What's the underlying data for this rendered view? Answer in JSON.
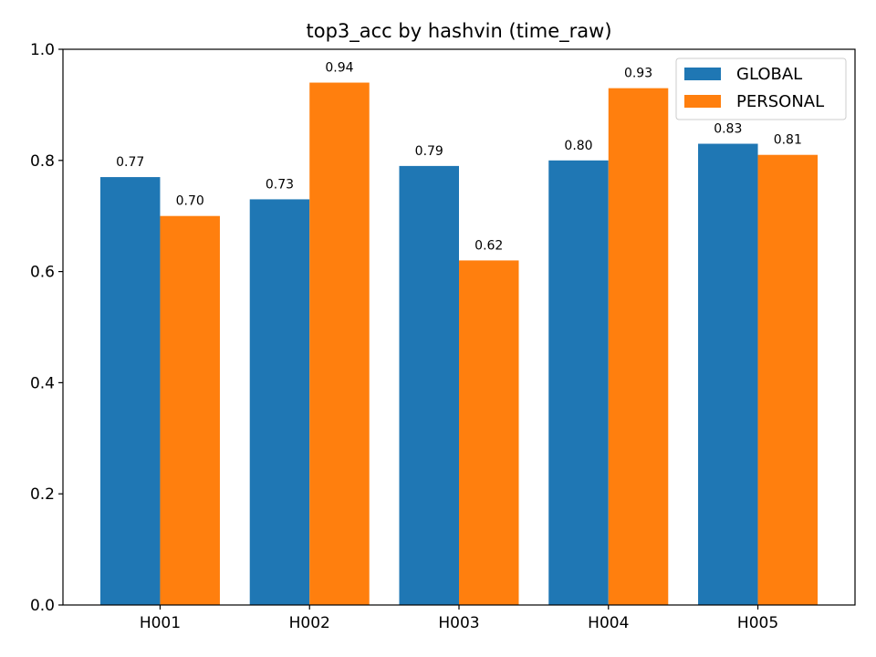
{
  "chart_data": {
    "type": "bar",
    "title": "top3_acc by hashvin (time_raw)",
    "xlabel": "",
    "ylabel": "",
    "categories": [
      "H001",
      "H002",
      "H003",
      "H004",
      "H005"
    ],
    "series": [
      {
        "name": "GLOBAL",
        "color": "#1f77b4",
        "values": [
          0.77,
          0.73,
          0.79,
          0.8,
          0.83
        ],
        "labels": [
          "0.77",
          "0.73",
          "0.79",
          "0.80",
          "0.83"
        ]
      },
      {
        "name": "PERSONAL",
        "color": "#ff7f0e",
        "values": [
          0.7,
          0.94,
          0.62,
          0.93,
          0.81
        ],
        "labels": [
          "0.70",
          "0.94",
          "0.62",
          "0.93",
          "0.81"
        ]
      }
    ],
    "ylim": [
      0,
      1.0
    ],
    "yticks": [
      0.0,
      0.2,
      0.4,
      0.6,
      0.8,
      1.0
    ],
    "ytick_labels": [
      "0.0",
      "0.2",
      "0.4",
      "0.6",
      "0.8",
      "1.0"
    ],
    "grid": false,
    "legend_position": "top-right"
  }
}
